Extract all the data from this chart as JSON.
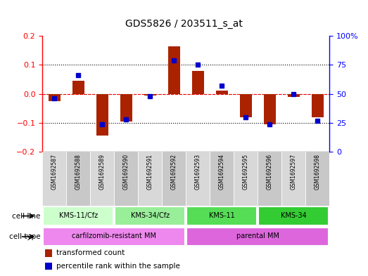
{
  "title": "GDS5826 / 203511_s_at",
  "samples": [
    "GSM1692587",
    "GSM1692588",
    "GSM1692589",
    "GSM1692590",
    "GSM1692591",
    "GSM1692592",
    "GSM1692593",
    "GSM1692594",
    "GSM1692595",
    "GSM1692596",
    "GSM1692597",
    "GSM1692598"
  ],
  "transformed_count": [
    -0.025,
    0.045,
    -0.145,
    -0.095,
    -0.005,
    0.165,
    0.08,
    0.01,
    -0.08,
    -0.105,
    -0.01,
    -0.08
  ],
  "percentile_rank": [
    46,
    66,
    24,
    28,
    48,
    79,
    75,
    57,
    30,
    24,
    50,
    27
  ],
  "cell_line_groups": [
    {
      "label": "KMS-11/Cfz",
      "start": 0,
      "end": 3,
      "color": "#ccffcc"
    },
    {
      "label": "KMS-34/Cfz",
      "start": 3,
      "end": 6,
      "color": "#99ee99"
    },
    {
      "label": "KMS-11",
      "start": 6,
      "end": 9,
      "color": "#55dd55"
    },
    {
      "label": "KMS-34",
      "start": 9,
      "end": 12,
      "color": "#33cc33"
    }
  ],
  "cell_type_groups": [
    {
      "label": "carfilzomib-resistant MM",
      "start": 0,
      "end": 6,
      "color": "#ee88ee"
    },
    {
      "label": "parental MM",
      "start": 6,
      "end": 12,
      "color": "#dd66dd"
    }
  ],
  "ylim_left": [
    -0.2,
    0.2
  ],
  "ylim_right": [
    0,
    100
  ],
  "yticks_left": [
    -0.2,
    -0.1,
    0.0,
    0.1,
    0.2
  ],
  "yticks_right": [
    0,
    25,
    50,
    75,
    100
  ],
  "bar_color": "#aa2200",
  "dot_color": "#0000cc",
  "hline_dotted": [
    -0.1,
    0.0,
    0.1
  ],
  "legend_items": [
    {
      "label": "transformed count",
      "color": "#aa2200"
    },
    {
      "label": "percentile rank within the sample",
      "color": "#0000cc"
    }
  ],
  "fig_width": 5.23,
  "fig_height": 3.93,
  "dpi": 100
}
